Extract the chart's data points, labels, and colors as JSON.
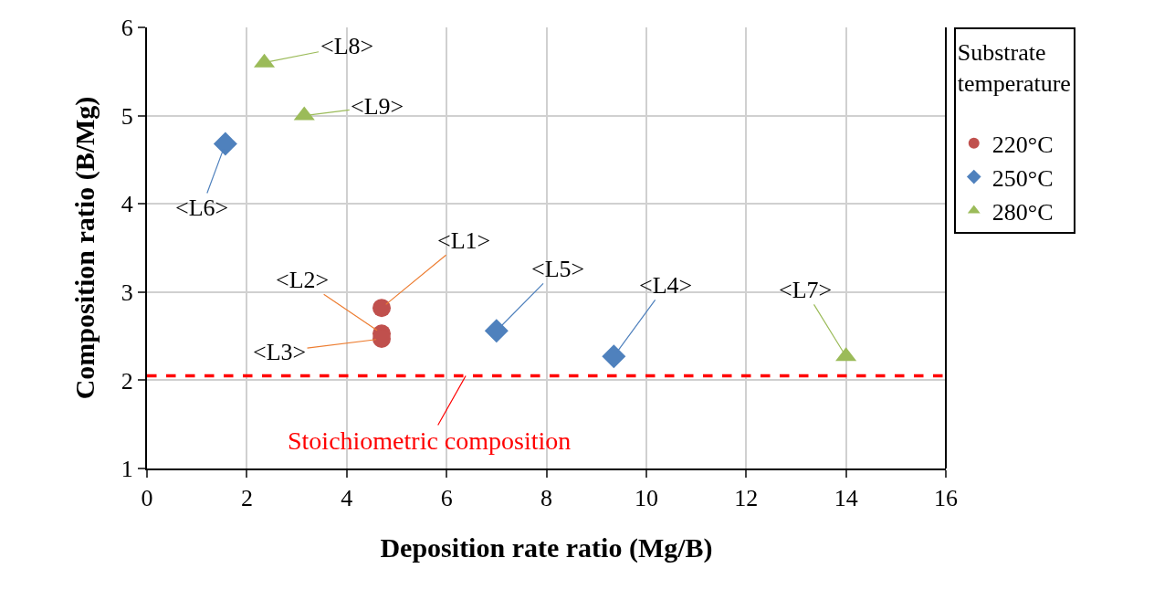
{
  "chart_data": {
    "type": "scatter",
    "xlabel": "Deposition rate ratio (Mg/B)",
    "ylabel": "Composition ratio (B/Mg)",
    "legend_title": "Substrate temperature",
    "series": [
      {
        "name": "220°C",
        "color": "#c0504d",
        "marker": "circle",
        "x": [
          4.7,
          4.7,
          4.7
        ],
        "values": [
          2.82,
          2.53,
          2.47
        ]
      },
      {
        "name": "250°C",
        "color": "#4f81bd",
        "marker": "diamond",
        "x": [
          9.35,
          7.0,
          1.57
        ],
        "values": [
          2.27,
          2.56,
          4.68
        ]
      },
      {
        "name": "280°C",
        "color": "#9bbb59",
        "marker": "triangle",
        "x": [
          14.0,
          2.35,
          3.15
        ],
        "values": [
          2.27,
          5.6,
          5.0
        ]
      }
    ],
    "annotations": [
      {
        "text": "<L1>",
        "x": 4.7,
        "y": 2.82
      },
      {
        "text": "<L2>",
        "x": 4.7,
        "y": 2.53
      },
      {
        "text": "<L3>",
        "x": 4.7,
        "y": 2.47
      },
      {
        "text": "<L4>",
        "x": 9.35,
        "y": 2.27
      },
      {
        "text": "<L5>",
        "x": 7.0,
        "y": 2.56
      },
      {
        "text": "<L6>",
        "x": 1.57,
        "y": 4.68
      },
      {
        "text": "<L7>",
        "x": 14.0,
        "y": 2.27
      },
      {
        "text": "<L8>",
        "x": 2.35,
        "y": 5.6
      },
      {
        "text": "<L9>",
        "x": 3.15,
        "y": 5.0
      }
    ],
    "ref_lines": [
      {
        "axis": "y",
        "value": 2.05,
        "label": "Stoichiometric composition",
        "color": "#ff0000",
        "line_style": "dashed"
      }
    ],
    "xlim": [
      0,
      16
    ],
    "xticks": [
      0,
      2,
      4,
      6,
      8,
      10,
      12,
      14,
      16
    ],
    "ylim": [
      1,
      6
    ],
    "yticks": [
      1,
      2,
      3,
      4,
      5,
      6
    ],
    "grid": true,
    "legend": "right"
  }
}
